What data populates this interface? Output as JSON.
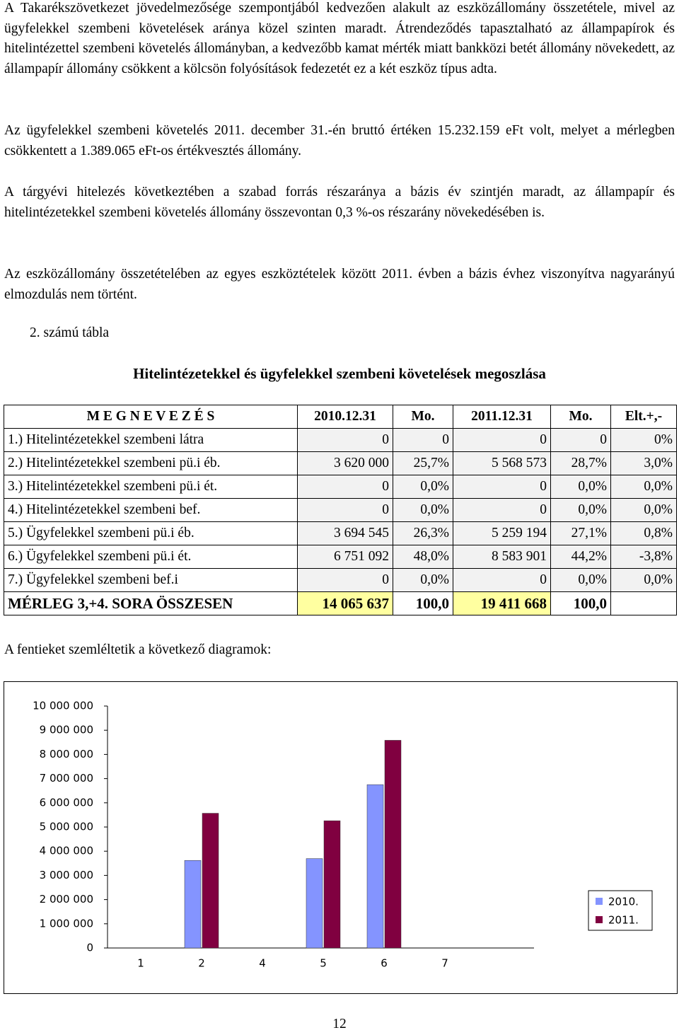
{
  "paragraphs": [
    "A Takarékszövetkezet jövedelmezősége szempontjából kedvezően alakult az eszközállomány összetétele, mivel az ügyfelekkel szembeni követelések aránya közel szinten maradt. Átrendeződés tapasztalható az állampapírok és hitelintézettel szembeni követelés állományban, a kedvezőbb kamat mérték miatt bankközi betét állomány növekedett, az állampapír állomány csökkent a kölcsön folyósítások fedezetét ez a két eszköz típus adta.",
    "Az ügyfelekkel szembeni követelés 2011. december 31.-én bruttó értéken 15.232.159 eFt volt, melyet a mérlegben csökkentett a 1.389.065 eFt-os értékvesztés állomány.",
    "A tárgyévi hitelezés következtében a szabad forrás részaránya a bázis év szintjén maradt, az állampapír és hitelintézetekkel szembeni követelés állomány összevontan 0,3 %-os részarány növekedésében is.",
    "Az eszközállomány összetételében az egyes eszköztételek között 2011. évben a bázis évhez viszonyítva nagyarányú elmozdulás nem történt."
  ],
  "table_caption": "2. számú tábla",
  "table_title": "Hitelintézetekkel és ügyfelekkel szembeni követelések megoszlása",
  "table": {
    "header": [
      "M E G N E V E Z É S",
      "2010.12.31",
      "Mo.",
      "2011.12.31",
      "Mo.",
      "Elt.+,-"
    ],
    "rows": [
      [
        "1.) Hitelintézetekkel szembeni látra",
        "0",
        "0",
        "0",
        "0",
        "0%"
      ],
      [
        "2.) Hitelintézetekkel szembeni pü.i éb.",
        "3 620 000",
        "25,7%",
        "5 568 573",
        "28,7%",
        "3,0%"
      ],
      [
        "3.) Hitelintézetekkel szembeni pü.i ét.",
        "0",
        "0,0%",
        "0",
        "0,0%",
        "0,0%"
      ],
      [
        "4.) Hitelintézetekkel szembeni bef.",
        "0",
        "0,0%",
        "0",
        "0,0%",
        "0,0%"
      ],
      [
        "5.) Ügyfelekkel szembeni pü.i éb.",
        "3 694 545",
        "26,3%",
        "5 259 194",
        "27,1%",
        "0,8%"
      ],
      [
        "6.) Ügyfelekkel szembeni pü.i ét.",
        "6 751 092",
        "48,0%",
        "8 583 901",
        "44,2%",
        "-3,8%"
      ],
      [
        "7.) Ügyfelekkel szembeni bef.i",
        "0",
        "0,0%",
        "0",
        "0,0%",
        "0,0%"
      ],
      [
        "MÉRLEG 3,+4. SORA ÖSSZESEN",
        "14 065 637",
        "100,0",
        "19 411 668",
        "100,0"
      ]
    ]
  },
  "chart_intro": "A fentieket szemléltetik a következő diagramok:",
  "chart_data": {
    "type": "bar",
    "categories": [
      "1",
      "2",
      "4",
      "5",
      "6",
      "7"
    ],
    "series": [
      {
        "name": "2010.",
        "color": "#8494ff",
        "values": [
          0,
          3620000,
          0,
          3694545,
          6751092,
          0
        ]
      },
      {
        "name": "2011.",
        "color": "#800040",
        "values": [
          0,
          5568573,
          0,
          5259194,
          8583901,
          0
        ]
      }
    ],
    "ylim": [
      0,
      10000000
    ],
    "yticks": [
      0,
      {
        "value": 1000000,
        "label": "1 000 000"
      },
      {
        "value": 2000000,
        "label": "2 000 000"
      },
      {
        "value": 3000000,
        "label": "3 000 000"
      },
      {
        "value": 4000000,
        "label": "4 000 000"
      },
      {
        "value": 5000000,
        "label": "5 000 000"
      },
      {
        "value": 6000000,
        "label": "6 000 000"
      },
      {
        "value": 7000000,
        "label": "7 000 000"
      },
      {
        "value": 8000000,
        "label": "8 000 000"
      },
      {
        "value": 9000000,
        "label": "9 000 000"
      },
      {
        "value": 10000000,
        "label": "10 000 000"
      }
    ],
    "legend": "right"
  },
  "page_number": "12"
}
